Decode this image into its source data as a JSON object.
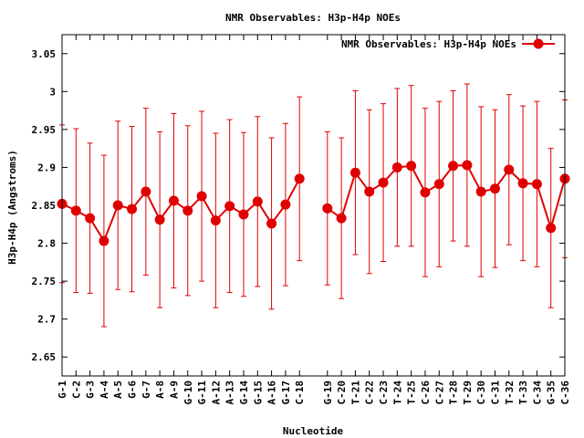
{
  "chart_data": {
    "type": "line",
    "title": "NMR Observables: H3p-H4p NOEs",
    "xlabel": "Nucleotide",
    "ylabel": "H3p-H4p (Angstroms)",
    "ylim": [
      2.625,
      3.075
    ],
    "yticks": [
      "2.65",
      "2.7",
      "2.75",
      "2.8",
      "2.85",
      "2.9",
      "2.95",
      "3",
      "3.05"
    ],
    "legend": "top-right",
    "color": "#e00000",
    "series": [
      {
        "name": "NMR Observables: H3p-H4p NOEs",
        "points": [
          {
            "label": "G-1",
            "pos": 1,
            "y": 2.852,
            "err": 0.104
          },
          {
            "label": "C-2",
            "pos": 2,
            "y": 2.843,
            "err": 0.108
          },
          {
            "label": "G-3",
            "pos": 3,
            "y": 2.833,
            "err": 0.099
          },
          {
            "label": "A-4",
            "pos": 4,
            "y": 2.803,
            "err": 0.113
          },
          {
            "label": "A-5",
            "pos": 5,
            "y": 2.85,
            "err": 0.111
          },
          {
            "label": "G-6",
            "pos": 6,
            "y": 2.845,
            "err": 0.109
          },
          {
            "label": "G-7",
            "pos": 7,
            "y": 2.868,
            "err": 0.11
          },
          {
            "label": "A-8",
            "pos": 8,
            "y": 2.831,
            "err": 0.116
          },
          {
            "label": "A-9",
            "pos": 9,
            "y": 2.856,
            "err": 0.115
          },
          {
            "label": "G-10",
            "pos": 10,
            "y": 2.843,
            "err": 0.112
          },
          {
            "label": "G-11",
            "pos": 11,
            "y": 2.862,
            "err": 0.112
          },
          {
            "label": "A-12",
            "pos": 12,
            "y": 2.83,
            "err": 0.115
          },
          {
            "label": "A-13",
            "pos": 13,
            "y": 2.849,
            "err": 0.114
          },
          {
            "label": "G-14",
            "pos": 14,
            "y": 2.838,
            "err": 0.108
          },
          {
            "label": "G-15",
            "pos": 15,
            "y": 2.855,
            "err": 0.112
          },
          {
            "label": "A-16",
            "pos": 16,
            "y": 2.826,
            "err": 0.113
          },
          {
            "label": "G-17",
            "pos": 17,
            "y": 2.851,
            "err": 0.107
          },
          {
            "label": "C-18",
            "pos": 18,
            "y": 2.885,
            "err": 0.108
          },
          {
            "label": "G-19",
            "pos": 20,
            "y": 2.846,
            "err": 0.101
          },
          {
            "label": "C-20",
            "pos": 21,
            "y": 2.833,
            "err": 0.106
          },
          {
            "label": "T-21",
            "pos": 22,
            "y": 2.893,
            "err": 0.108
          },
          {
            "label": "C-22",
            "pos": 23,
            "y": 2.868,
            "err": 0.108
          },
          {
            "label": "C-23",
            "pos": 24,
            "y": 2.88,
            "err": 0.104
          },
          {
            "label": "T-24",
            "pos": 25,
            "y": 2.9,
            "err": 0.104
          },
          {
            "label": "T-25",
            "pos": 26,
            "y": 2.902,
            "err": 0.106
          },
          {
            "label": "C-26",
            "pos": 27,
            "y": 2.867,
            "err": 0.111
          },
          {
            "label": "C-27",
            "pos": 28,
            "y": 2.878,
            "err": 0.109
          },
          {
            "label": "T-28",
            "pos": 29,
            "y": 2.902,
            "err": 0.099
          },
          {
            "label": "T-29",
            "pos": 30,
            "y": 2.903,
            "err": 0.107
          },
          {
            "label": "C-30",
            "pos": 31,
            "y": 2.868,
            "err": 0.112
          },
          {
            "label": "C-31",
            "pos": 32,
            "y": 2.872,
            "err": 0.104
          },
          {
            "label": "T-32",
            "pos": 33,
            "y": 2.897,
            "err": 0.099
          },
          {
            "label": "T-33",
            "pos": 34,
            "y": 2.879,
            "err": 0.102
          },
          {
            "label": "C-34",
            "pos": 35,
            "y": 2.878,
            "err": 0.109
          },
          {
            "label": "G-35",
            "pos": 36,
            "y": 2.82,
            "err": 0.105
          },
          {
            "label": "C-36",
            "pos": 37,
            "y": 2.885,
            "err": 0.104
          }
        ]
      }
    ]
  }
}
